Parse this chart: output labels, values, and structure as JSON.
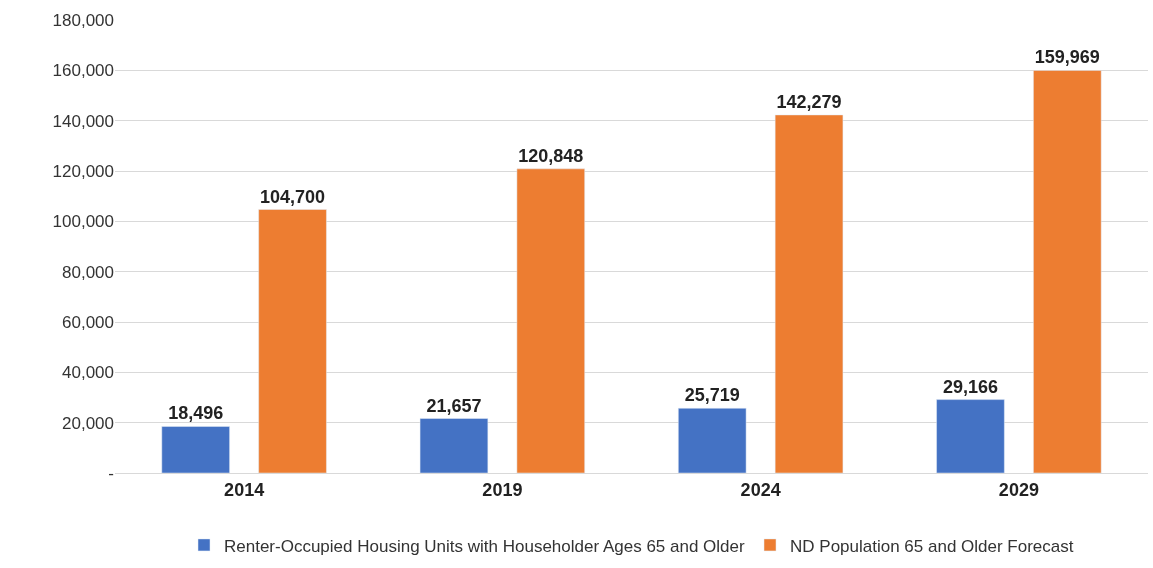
{
  "chart_data": {
    "type": "bar",
    "categories": [
      "2014",
      "2019",
      "2024",
      "2029"
    ],
    "series": [
      {
        "name": "Renter-Occupied Housing Units with Householder Ages 65 and Older",
        "color": "#4472c4",
        "values": [
          18496,
          21657,
          25719,
          29166
        ],
        "value_labels": [
          "18,496",
          "21,657",
          "25,719",
          "29,166"
        ]
      },
      {
        "name": "ND Population 65 and Older Forecast",
        "color": "#ed7d31",
        "values": [
          104700,
          120848,
          142279,
          159969
        ],
        "value_labels": [
          "104,700",
          "120,848",
          "142,279",
          "159,969"
        ]
      }
    ],
    "ylim": [
      0,
      180000
    ],
    "yticks": [
      {
        "value": 0,
        "label": "-"
      },
      {
        "value": 20000,
        "label": "20,000"
      },
      {
        "value": 40000,
        "label": "40,000"
      },
      {
        "value": 60000,
        "label": "60,000"
      },
      {
        "value": 80000,
        "label": "80,000"
      },
      {
        "value": 100000,
        "label": "100,000"
      },
      {
        "value": 120000,
        "label": "120,000"
      },
      {
        "value": 140000,
        "label": "140,000"
      },
      {
        "value": 160000,
        "label": "160,000"
      },
      {
        "value": 180000,
        "label": "180,000"
      }
    ],
    "grid": "y",
    "legend": "bottom"
  }
}
